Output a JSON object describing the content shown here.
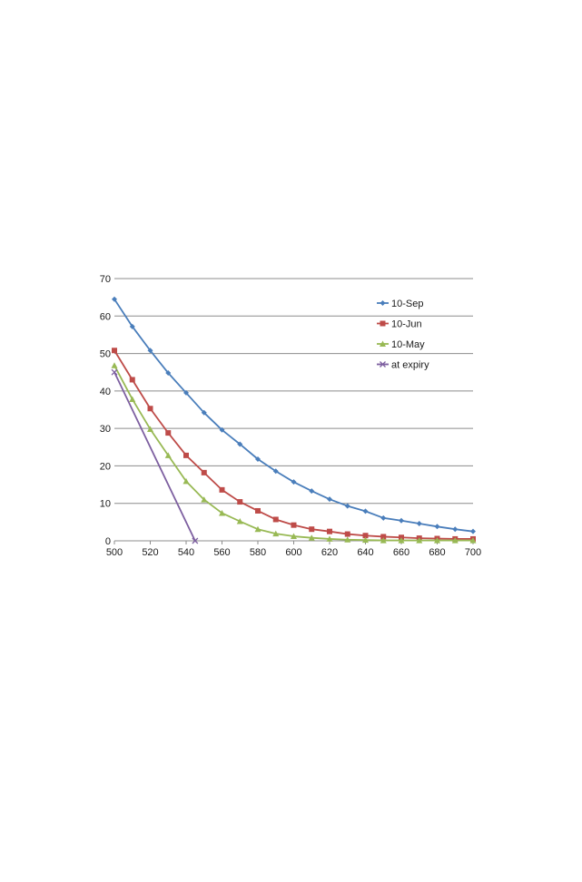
{
  "chart_data": {
    "type": "line",
    "title": "",
    "xlabel": "",
    "ylabel": "",
    "xlim": [
      500,
      700
    ],
    "ylim": [
      0,
      70
    ],
    "x_ticks": [
      "500",
      "520",
      "540",
      "560",
      "580",
      "600",
      "620",
      "640",
      "660",
      "680",
      "700"
    ],
    "y_ticks": [
      "0",
      "10",
      "20",
      "30",
      "40",
      "50",
      "60",
      "70"
    ],
    "grid": "horizontal",
    "legend_position": "top-right",
    "series": [
      {
        "name": "10-Sep",
        "color": "#4a7ebb",
        "marker": "diamond",
        "x": [
          500,
          510,
          520,
          530,
          540,
          550,
          560,
          570,
          580,
          590,
          600,
          610,
          620,
          630,
          640,
          650,
          660,
          670,
          680,
          690,
          700
        ],
        "values": [
          64.5,
          57.2,
          50.8,
          44.8,
          39.5,
          34.2,
          29.6,
          25.8,
          21.8,
          18.6,
          15.7,
          13.3,
          11.1,
          9.3,
          7.9,
          6.1,
          5.4,
          4.6,
          3.8,
          3.1,
          2.5
        ]
      },
      {
        "name": "10-Jun",
        "color": "#be4b48",
        "marker": "square",
        "x": [
          500,
          510,
          520,
          530,
          540,
          550,
          560,
          570,
          580,
          590,
          600,
          610,
          620,
          630,
          640,
          650,
          660,
          670,
          680,
          690,
          700
        ],
        "values": [
          50.8,
          43.0,
          35.3,
          28.8,
          22.8,
          18.2,
          13.6,
          10.4,
          8.0,
          5.7,
          4.2,
          3.1,
          2.5,
          1.8,
          1.4,
          1.1,
          0.9,
          0.7,
          0.6,
          0.5,
          0.5
        ]
      },
      {
        "name": "10-May",
        "color": "#98b954",
        "marker": "triangle",
        "x": [
          500,
          510,
          520,
          530,
          540,
          550,
          560,
          570,
          580,
          590,
          600,
          610,
          620,
          630,
          640,
          650,
          660,
          670,
          680,
          690,
          700
        ],
        "values": [
          46.8,
          37.8,
          29.8,
          22.8,
          15.9,
          11.0,
          7.4,
          5.2,
          3.1,
          1.9,
          1.2,
          0.8,
          0.5,
          0.3,
          0.2,
          0.1,
          0.1,
          0.1,
          0.1,
          0.1,
          0.1
        ]
      },
      {
        "name": "at expiry",
        "color": "#7d5fa0",
        "marker": "x",
        "x": [
          500,
          545
        ],
        "values": [
          45,
          0
        ]
      }
    ]
  }
}
